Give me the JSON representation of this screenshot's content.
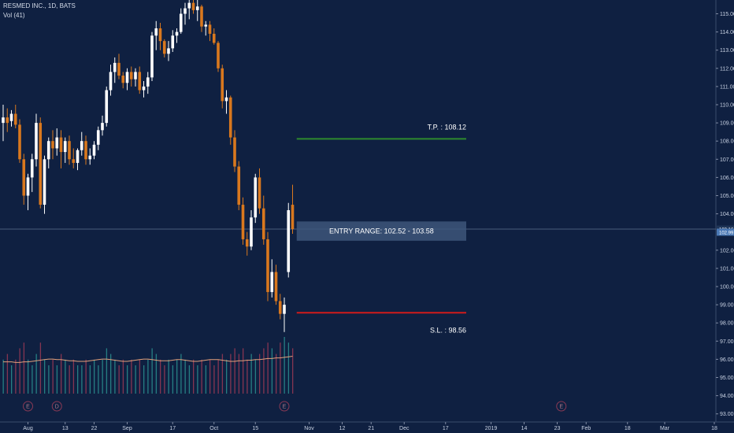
{
  "header": {
    "symbol": "RESMED INC., 1D, BATS",
    "volume_label": "Vol (41)"
  },
  "colors": {
    "background": "#0f2041",
    "up": "#ffffff",
    "down": "#d9781e",
    "vol_up": "#2a8f8f",
    "vol_down": "#9a3a55",
    "vol_ma": "#e3a07a",
    "tp_line": "#2e8a2e",
    "sl_line": "#d11b1b",
    "entry_box": "#3d567a",
    "badge_current": "#4a78b5",
    "badge_prev": "#1f3558",
    "event": "#8a3a55"
  },
  "chart_data": {
    "type": "candlestick",
    "y_axis": {
      "range": [
        93,
        115.5
      ],
      "ticks": [
        "115.00",
        "114.00",
        "113.00",
        "112.00",
        "111.00",
        "110.00",
        "109.00",
        "108.00",
        "107.00",
        "106.00",
        "105.00",
        "104.00",
        "102.00",
        "101.00",
        "100.00",
        "99.00",
        "98.00",
        "97.00",
        "96.00",
        "95.00",
        "94.00",
        "93.00"
      ],
      "price_badges": [
        "103.16",
        "102.99"
      ],
      "current_price": 103.16,
      "prev_close": 102.99
    },
    "x_axis": {
      "labels": [
        {
          "text": "Aug",
          "index": 6
        },
        {
          "text": "13",
          "index": 15
        },
        {
          "text": "22",
          "index": 22
        },
        {
          "text": "Sep",
          "index": 30
        },
        {
          "text": "17",
          "index": 41
        },
        {
          "text": "Oct",
          "index": 51
        },
        {
          "text": "15",
          "index": 61
        },
        {
          "text": "Nov",
          "index": 74
        },
        {
          "text": "12",
          "index": 82
        },
        {
          "text": "21",
          "index": 89
        },
        {
          "text": "Dec",
          "index": 97
        },
        {
          "text": "17",
          "index": 107
        },
        {
          "text": "2019",
          "index": 118
        },
        {
          "text": "14",
          "index": 126
        },
        {
          "text": "23",
          "index": 134
        },
        {
          "text": "Feb",
          "index": 141
        },
        {
          "text": "18",
          "index": 151
        },
        {
          "text": "Mar",
          "index": 160
        },
        {
          "text": "18",
          "index": 172
        }
      ]
    },
    "candles": [
      [
        109.0,
        110.0,
        108.0,
        109.3
      ],
      [
        109.3,
        109.8,
        108.5,
        109.0
      ],
      [
        109.1,
        109.7,
        108.8,
        109.5
      ],
      [
        109.5,
        110.0,
        108.7,
        108.9
      ],
      [
        108.9,
        109.2,
        106.8,
        107.0
      ],
      [
        107.0,
        107.3,
        104.5,
        105.0
      ],
      [
        105.0,
        106.2,
        104.2,
        106.0
      ],
      [
        106.0,
        107.3,
        105.2,
        107.0
      ],
      [
        107.0,
        109.5,
        106.6,
        109.0
      ],
      [
        109.0,
        109.3,
        104.3,
        104.5
      ],
      [
        104.5,
        107.2,
        104.0,
        107.0
      ],
      [
        107.0,
        108.2,
        106.5,
        108.0
      ],
      [
        108.0,
        108.6,
        107.0,
        107.6
      ],
      [
        107.6,
        108.7,
        107.2,
        108.2
      ],
      [
        108.2,
        108.6,
        106.5,
        107.4
      ],
      [
        107.4,
        108.2,
        106.8,
        108.0
      ],
      [
        108.0,
        108.3,
        106.7,
        107.0
      ],
      [
        107.0,
        107.6,
        106.5,
        106.8
      ],
      [
        106.8,
        107.6,
        106.4,
        107.5
      ],
      [
        107.5,
        108.5,
        107.2,
        108.0
      ],
      [
        108.0,
        108.3,
        106.7,
        107.0
      ],
      [
        107.0,
        107.6,
        106.7,
        107.2
      ],
      [
        107.2,
        108.0,
        107.0,
        107.8
      ],
      [
        107.8,
        108.8,
        107.5,
        108.6
      ],
      [
        108.6,
        109.4,
        108.3,
        109.0
      ],
      [
        109.0,
        111.0,
        108.8,
        110.8
      ],
      [
        110.8,
        112.2,
        110.5,
        111.8
      ],
      [
        111.8,
        112.6,
        111.2,
        112.3
      ],
      [
        112.3,
        112.8,
        111.4,
        111.6
      ],
      [
        111.6,
        111.8,
        110.9,
        111.2
      ],
      [
        111.2,
        112.0,
        110.8,
        111.8
      ],
      [
        111.8,
        112.1,
        111.0,
        111.4
      ],
      [
        111.4,
        112.0,
        111.0,
        111.8
      ],
      [
        111.8,
        112.1,
        110.6,
        110.8
      ],
      [
        110.8,
        111.3,
        110.4,
        111.0
      ],
      [
        111.0,
        111.8,
        110.6,
        111.5
      ],
      [
        111.5,
        114.0,
        111.3,
        113.8
      ],
      [
        113.8,
        114.6,
        113.0,
        114.2
      ],
      [
        114.2,
        114.5,
        113.0,
        113.5
      ],
      [
        113.5,
        113.6,
        112.6,
        112.8
      ],
      [
        112.8,
        113.5,
        112.4,
        113.1
      ],
      [
        113.1,
        114.1,
        112.9,
        113.8
      ],
      [
        113.8,
        114.2,
        113.4,
        114.0
      ],
      [
        114.0,
        115.3,
        113.9,
        115.0
      ],
      [
        115.0,
        115.6,
        114.4,
        115.3
      ],
      [
        115.3,
        115.9,
        114.7,
        115.6
      ],
      [
        115.6,
        116.1,
        115.0,
        115.2
      ],
      [
        115.2,
        115.8,
        114.6,
        115.4
      ],
      [
        115.4,
        115.5,
        114.0,
        114.3
      ],
      [
        114.3,
        114.6,
        113.8,
        114.4
      ],
      [
        114.4,
        114.6,
        113.5,
        113.9
      ],
      [
        113.9,
        114.2,
        113.3,
        113.4
      ],
      [
        113.4,
        113.5,
        111.8,
        112.0
      ],
      [
        112.0,
        112.2,
        109.8,
        110.2
      ],
      [
        110.2,
        110.8,
        109.5,
        110.4
      ],
      [
        110.4,
        110.5,
        107.8,
        108.2
      ],
      [
        108.2,
        108.6,
        106.3,
        106.6
      ],
      [
        106.6,
        106.9,
        104.2,
        104.5
      ],
      [
        104.5,
        104.9,
        102.3,
        102.6
      ],
      [
        102.6,
        103.0,
        101.7,
        102.2
      ],
      [
        102.2,
        104.2,
        102.0,
        103.8
      ],
      [
        103.8,
        106.2,
        103.5,
        106.0
      ],
      [
        106.0,
        106.5,
        104.0,
        104.3
      ],
      [
        104.3,
        105.0,
        102.3,
        102.6
      ],
      [
        102.6,
        103.0,
        99.2,
        99.7
      ],
      [
        99.7,
        101.5,
        99.4,
        100.8
      ],
      [
        100.8,
        101.2,
        99.0,
        99.2
      ],
      [
        99.2,
        99.6,
        98.2,
        98.5
      ],
      [
        98.5,
        99.4,
        97.5,
        99.0
      ],
      [
        100.8,
        104.6,
        100.5,
        104.2
      ],
      [
        104.5,
        105.6,
        102.9,
        103.16
      ]
    ],
    "volume": [
      0.6,
      0.7,
      0.5,
      0.6,
      0.8,
      0.9,
      0.6,
      0.5,
      0.7,
      0.9,
      0.6,
      0.5,
      0.6,
      0.5,
      0.7,
      0.6,
      0.5,
      0.6,
      0.5,
      0.5,
      0.6,
      0.5,
      0.6,
      0.5,
      0.6,
      0.8,
      0.7,
      0.6,
      0.5,
      0.6,
      0.5,
      0.6,
      0.5,
      0.6,
      0.5,
      0.6,
      0.8,
      0.7,
      0.6,
      0.5,
      0.6,
      0.5,
      0.6,
      0.7,
      0.6,
      0.5,
      0.6,
      0.5,
      0.6,
      0.5,
      0.6,
      0.5,
      0.6,
      0.7,
      0.6,
      0.7,
      0.8,
      0.7,
      0.8,
      0.6,
      0.7,
      0.6,
      0.7,
      0.8,
      0.9,
      0.8,
      0.7,
      0.9,
      1.0,
      0.9,
      0.8
    ],
    "volume_ma": [
      0.56,
      0.56,
      0.56,
      0.55,
      0.55,
      0.56,
      0.56,
      0.57,
      0.58,
      0.59,
      0.6,
      0.61,
      0.61,
      0.6,
      0.6,
      0.59,
      0.58,
      0.58,
      0.57,
      0.57,
      0.57,
      0.58,
      0.59,
      0.6,
      0.61,
      0.61,
      0.6,
      0.59,
      0.58,
      0.57,
      0.57,
      0.58,
      0.59,
      0.6,
      0.61,
      0.61,
      0.6,
      0.59,
      0.58,
      0.58,
      0.58,
      0.59,
      0.6,
      0.6,
      0.59,
      0.58,
      0.57,
      0.57,
      0.58,
      0.59,
      0.6,
      0.6,
      0.6,
      0.59,
      0.58,
      0.57,
      0.57,
      0.58,
      0.58,
      0.59,
      0.59,
      0.6,
      0.6,
      0.61,
      0.62,
      0.62,
      0.63,
      0.63,
      0.64,
      0.65,
      0.66
    ],
    "events": [
      {
        "text": "E",
        "index": 6
      },
      {
        "text": "D",
        "index": 13
      },
      {
        "text": "E",
        "index": 68
      },
      {
        "text": "E",
        "index": 135
      }
    ],
    "annotations": {
      "take_profit": {
        "label": "T.P. : 108.12",
        "price": 108.12,
        "from_index": 71,
        "to_index": 112
      },
      "stop_loss": {
        "label": "S.L. : 98.56",
        "price": 98.56,
        "from_index": 71,
        "to_index": 112
      },
      "entry_range": {
        "label": "ENTRY RANGE: 102.52 - 103.58",
        "low": 102.52,
        "high": 103.58,
        "from_index": 71,
        "to_index": 112
      }
    }
  }
}
